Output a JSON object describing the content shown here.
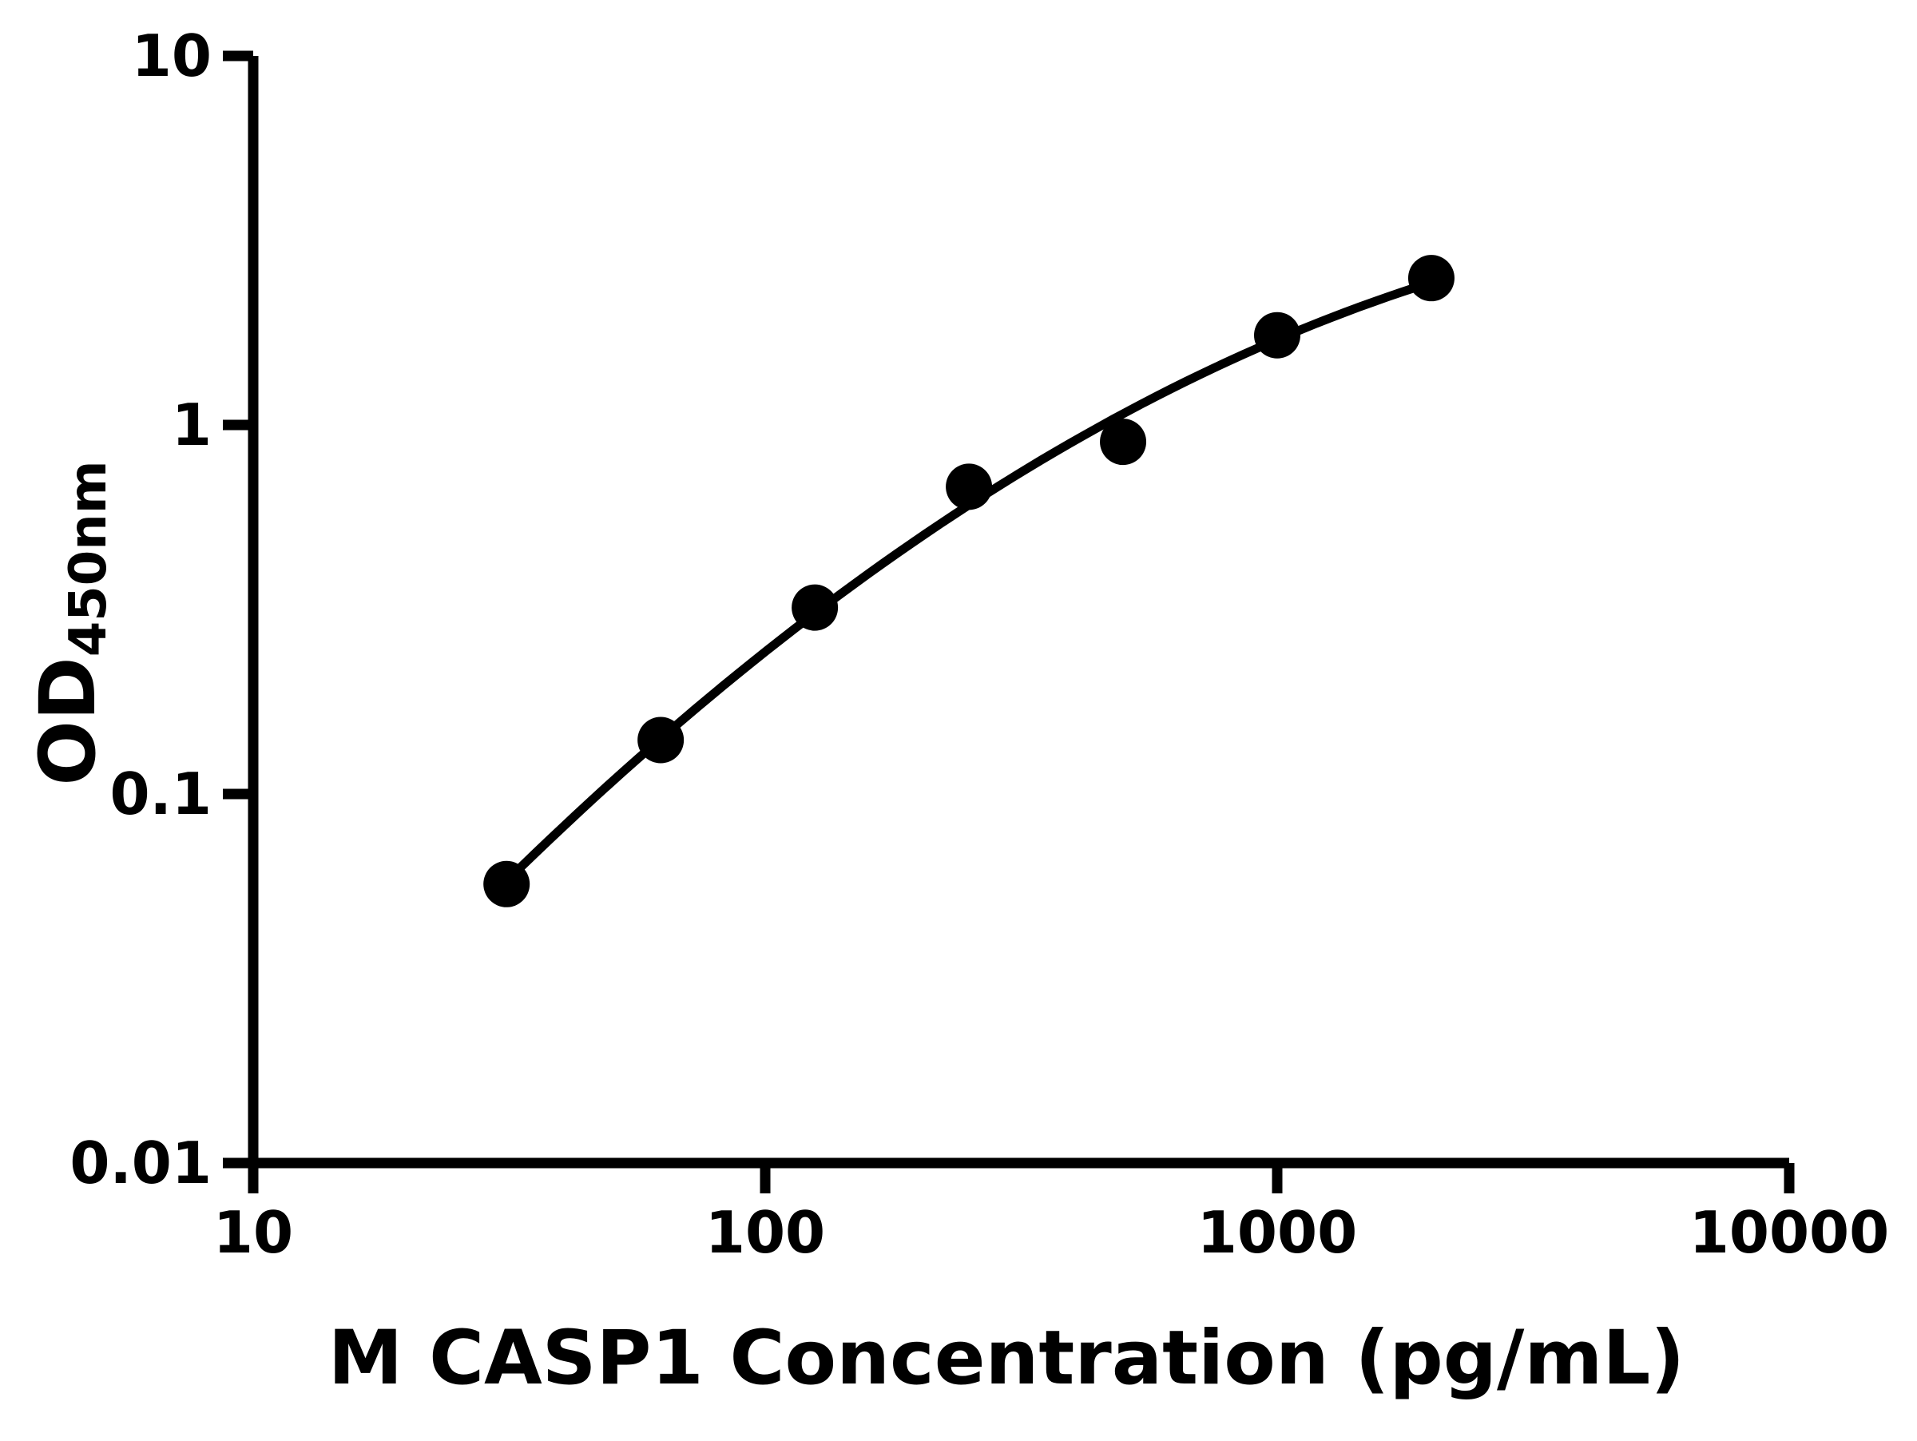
{
  "chart_data": {
    "type": "scatter",
    "title": "",
    "xlabel": "M CASP1 Concentration (pg/mL)",
    "ylabel": "OD",
    "ylabel_subscript": "450nm",
    "x_scale": "log",
    "y_scale": "log",
    "xlim": [
      10,
      10000
    ],
    "ylim": [
      0.01,
      10
    ],
    "grid": false,
    "legend": false,
    "x_ticks": [
      {
        "value": 10,
        "label": "10"
      },
      {
        "value": 100,
        "label": "100"
      },
      {
        "value": 1000,
        "label": "1000"
      },
      {
        "value": 10000,
        "label": "10000"
      }
    ],
    "y_ticks": [
      {
        "value": 10,
        "label": "10"
      },
      {
        "value": 1,
        "label": "1"
      },
      {
        "value": 0.1,
        "label": "0.1"
      },
      {
        "value": 0.01,
        "label": "0.01"
      }
    ],
    "series": [
      {
        "marker": "circle",
        "color": "#000000",
        "fit_line": "smooth",
        "x": [
          31.25,
          62.5,
          125,
          250,
          500,
          1000,
          2000
        ],
        "y": [
          0.057,
          0.14,
          0.32,
          0.68,
          0.9,
          1.75,
          2.5
        ]
      }
    ]
  },
  "colors": {
    "foreground": "#000000",
    "background": "#ffffff"
  }
}
